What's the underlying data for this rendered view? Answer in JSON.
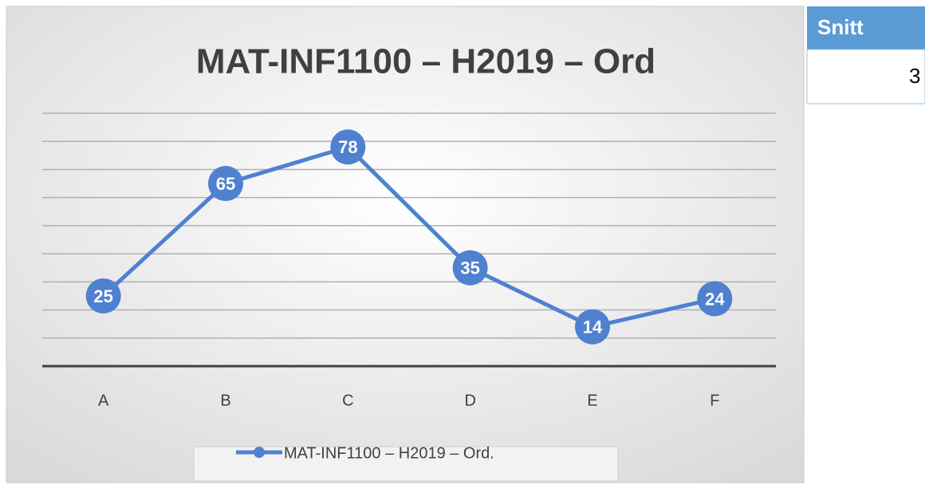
{
  "chart_data": {
    "type": "line",
    "title": "MAT-INF1100 – H2019 – Ord",
    "categories": [
      "A",
      "B",
      "C",
      "D",
      "E",
      "F"
    ],
    "series": [
      {
        "name": "MAT-INF1100 – H2019 – Ord.",
        "color": "#4f81d0",
        "values": [
          25,
          65,
          78,
          35,
          14,
          24
        ]
      }
    ],
    "ylim": [
      0,
      90
    ],
    "yticks": [
      0,
      10,
      20,
      30,
      40,
      50,
      60,
      70,
      80,
      90
    ],
    "grid": true,
    "legend": "bottom"
  },
  "table": {
    "header": "Snitt",
    "rows": [
      [
        "3"
      ]
    ]
  }
}
